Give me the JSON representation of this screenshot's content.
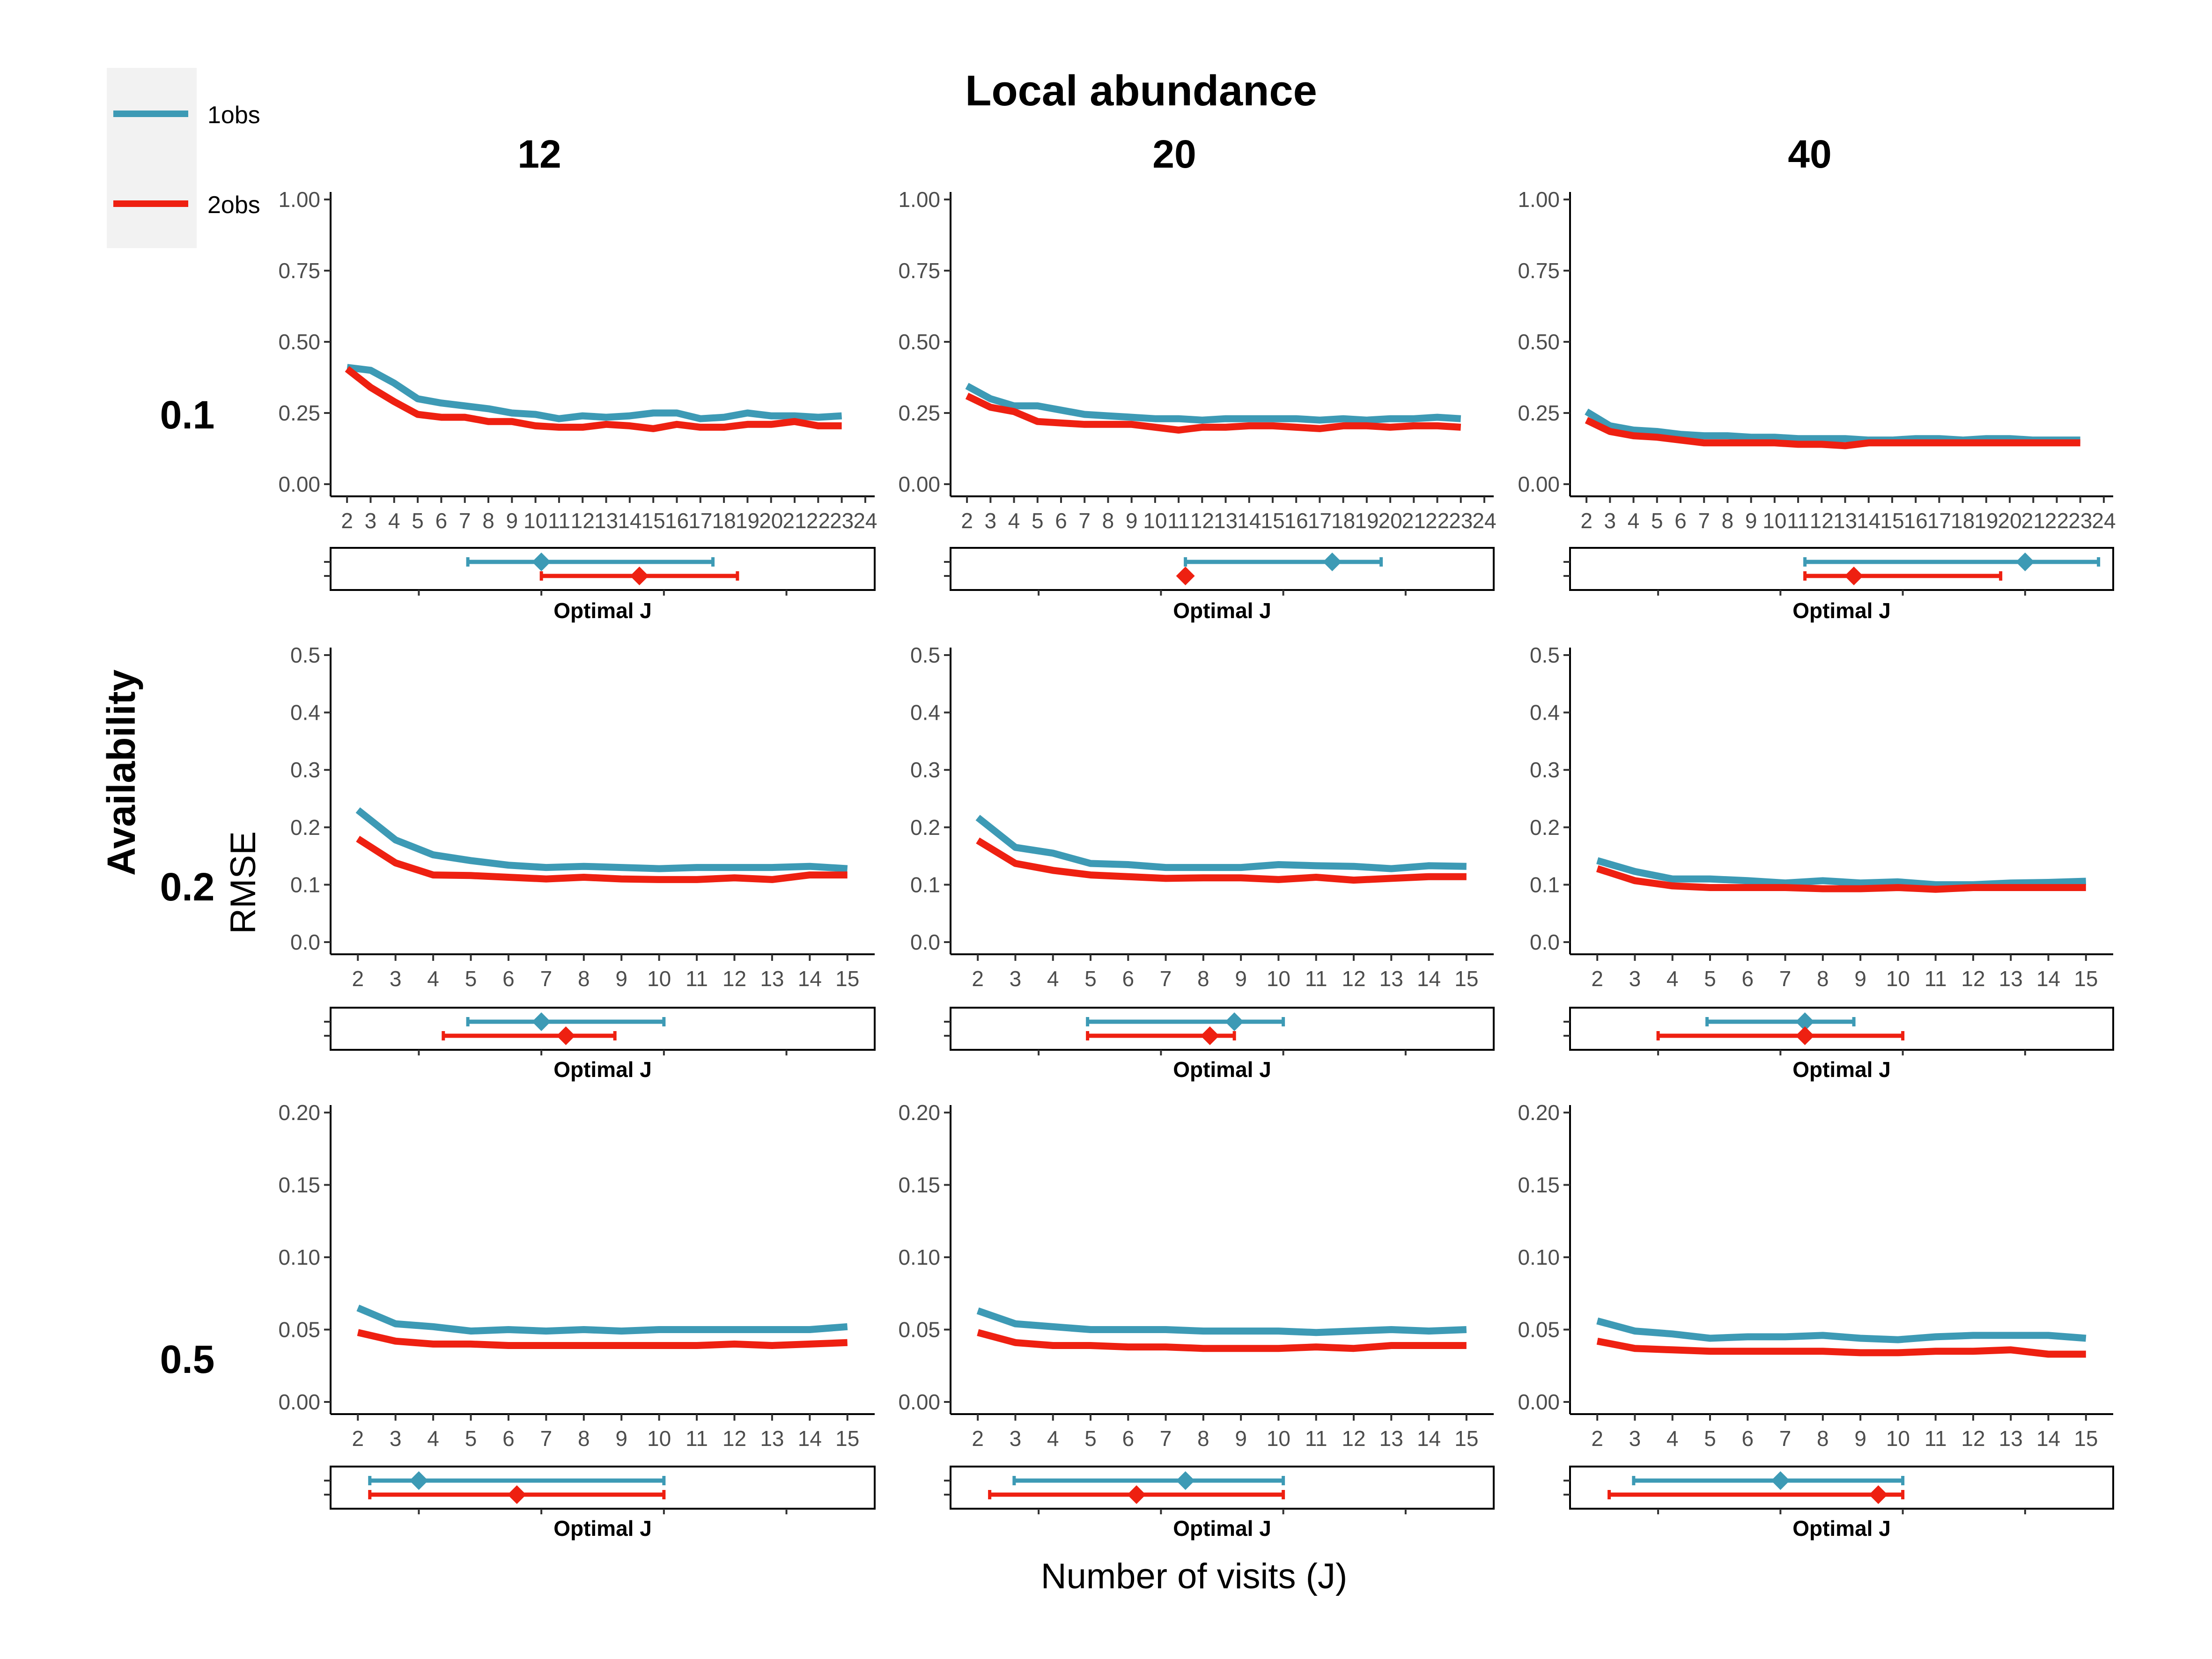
{
  "title": "Local abundance",
  "row_group_title": "Availability",
  "y_axis_title": "RMSE",
  "x_axis_title": "Number of visits (J)",
  "opt_label": "Optimal J",
  "col_labels": [
    "12",
    "20",
    "40"
  ],
  "row_labels": [
    "0.1",
    "0.2",
    "0.5"
  ],
  "legend": [
    {
      "name": "1obs",
      "color": "#3d9ab5"
    },
    {
      "name": "2obs",
      "color": "#ee2011"
    }
  ],
  "chart_data": {
    "type": "line",
    "columns": [
      "12",
      "20",
      "40"
    ],
    "rows": [
      {
        "label": "0.1",
        "ylim": [
          0,
          1.0
        ],
        "yticks": [
          0,
          0.25,
          0.5,
          0.75,
          1.0
        ],
        "yticklabels": [
          "0.00",
          "0.25",
          "0.50",
          "0.75",
          "1.00"
        ],
        "x": [
          2,
          3,
          4,
          5,
          6,
          7,
          8,
          9,
          10,
          11,
          12,
          13,
          14,
          15,
          16,
          17,
          18,
          19,
          20,
          21,
          22,
          23
        ],
        "xticks": [
          2,
          3,
          4,
          5,
          6,
          7,
          8,
          9,
          10,
          11,
          12,
          13,
          14,
          15,
          16,
          17,
          18,
          19,
          20,
          21,
          22,
          23,
          24
        ],
        "xlim": [
          1.5,
          24.2
        ],
        "panels": [
          {
            "series": [
              {
                "name": "1obs",
                "values": [
                  0.41,
                  0.4,
                  0.355,
                  0.3,
                  0.285,
                  0.275,
                  0.265,
                  0.25,
                  0.245,
                  0.23,
                  0.24,
                  0.235,
                  0.24,
                  0.25,
                  0.25,
                  0.23,
                  0.235,
                  0.25,
                  0.24,
                  0.24,
                  0.235,
                  0.24
                ]
              },
              {
                "name": "2obs",
                "values": [
                  0.405,
                  0.34,
                  0.29,
                  0.245,
                  0.235,
                  0.235,
                  0.22,
                  0.22,
                  0.205,
                  0.2,
                  0.2,
                  0.21,
                  0.205,
                  0.195,
                  0.21,
                  0.2,
                  0.2,
                  0.21,
                  0.21,
                  0.22,
                  0.205,
                  0.205
                ]
              }
            ],
            "optimal": [
              {
                "name": "1obs",
                "point": 10,
                "low": 7,
                "high": 17
              },
              {
                "name": "2obs",
                "point": 14,
                "low": 10,
                "high": 18
              }
            ]
          },
          {
            "series": [
              {
                "name": "1obs",
                "values": [
                  0.345,
                  0.3,
                  0.275,
                  0.275,
                  0.26,
                  0.245,
                  0.24,
                  0.235,
                  0.23,
                  0.23,
                  0.225,
                  0.23,
                  0.23,
                  0.23,
                  0.23,
                  0.225,
                  0.23,
                  0.225,
                  0.23,
                  0.23,
                  0.235,
                  0.23
                ]
              },
              {
                "name": "2obs",
                "values": [
                  0.31,
                  0.27,
                  0.255,
                  0.22,
                  0.215,
                  0.21,
                  0.21,
                  0.21,
                  0.2,
                  0.19,
                  0.2,
                  0.2,
                  0.205,
                  0.205,
                  0.2,
                  0.195,
                  0.205,
                  0.205,
                  0.2,
                  0.205,
                  0.205,
                  0.2
                ]
              }
            ],
            "optimal": [
              {
                "name": "1obs",
                "point": 17,
                "low": 11,
                "high": 19
              },
              {
                "name": "2obs",
                "point": 11,
                "low": 11,
                "high": 11
              }
            ]
          },
          {
            "series": [
              {
                "name": "1obs",
                "values": [
                  0.255,
                  0.205,
                  0.19,
                  0.185,
                  0.175,
                  0.17,
                  0.17,
                  0.165,
                  0.165,
                  0.16,
                  0.16,
                  0.16,
                  0.155,
                  0.155,
                  0.16,
                  0.16,
                  0.155,
                  0.16,
                  0.16,
                  0.155,
                  0.155,
                  0.155
                ]
              },
              {
                "name": "2obs",
                "values": [
                  0.225,
                  0.185,
                  0.17,
                  0.165,
                  0.155,
                  0.145,
                  0.145,
                  0.145,
                  0.145,
                  0.14,
                  0.14,
                  0.135,
                  0.145,
                  0.145,
                  0.145,
                  0.145,
                  0.145,
                  0.145,
                  0.145,
                  0.145,
                  0.145,
                  0.145
                ]
              }
            ],
            "optimal": [
              {
                "name": "1obs",
                "point": 20,
                "low": 11,
                "high": 23
              },
              {
                "name": "2obs",
                "point": 13,
                "low": 11,
                "high": 19
              }
            ]
          }
        ]
      },
      {
        "label": "0.2",
        "ylim": [
          0,
          0.5
        ],
        "yticks": [
          0,
          0.1,
          0.2,
          0.3,
          0.4,
          0.5
        ],
        "yticklabels": [
          "0.0",
          "0.1",
          "0.2",
          "0.3",
          "0.4",
          "0.5"
        ],
        "x": [
          2,
          3,
          4,
          5,
          6,
          7,
          8,
          9,
          10,
          11,
          12,
          13,
          14,
          15
        ],
        "xticks": [
          2,
          3,
          4,
          5,
          6,
          7,
          8,
          9,
          10,
          11,
          12,
          13,
          14,
          15
        ],
        "xlim": [
          1.4,
          15.6
        ],
        "panels": [
          {
            "series": [
              {
                "name": "1obs",
                "values": [
                  0.23,
                  0.178,
                  0.152,
                  0.142,
                  0.134,
                  0.13,
                  0.132,
                  0.13,
                  0.128,
                  0.13,
                  0.13,
                  0.13,
                  0.132,
                  0.128
                ]
              },
              {
                "name": "2obs",
                "values": [
                  0.18,
                  0.138,
                  0.117,
                  0.116,
                  0.113,
                  0.11,
                  0.113,
                  0.11,
                  0.109,
                  0.109,
                  0.112,
                  0.109,
                  0.117,
                  0.117
                ]
              }
            ],
            "optimal": [
              {
                "name": "1obs",
                "point": 10,
                "low": 7,
                "high": 15
              },
              {
                "name": "2obs",
                "point": 11,
                "low": 6,
                "high": 13
              }
            ]
          },
          {
            "series": [
              {
                "name": "1obs",
                "values": [
                  0.217,
                  0.165,
                  0.155,
                  0.137,
                  0.135,
                  0.13,
                  0.13,
                  0.13,
                  0.135,
                  0.133,
                  0.132,
                  0.128,
                  0.133,
                  0.132
                ]
              },
              {
                "name": "2obs",
                "values": [
                  0.177,
                  0.137,
                  0.125,
                  0.117,
                  0.114,
                  0.111,
                  0.112,
                  0.112,
                  0.109,
                  0.113,
                  0.108,
                  0.111,
                  0.114,
                  0.114
                ]
              }
            ],
            "optimal": [
              {
                "name": "1obs",
                "point": 13,
                "low": 7,
                "high": 15
              },
              {
                "name": "2obs",
                "point": 12,
                "low": 7,
                "high": 13
              }
            ]
          },
          {
            "series": [
              {
                "name": "1obs",
                "values": [
                  0.142,
                  0.123,
                  0.11,
                  0.11,
                  0.107,
                  0.103,
                  0.107,
                  0.103,
                  0.105,
                  0.1,
                  0.1,
                  0.103,
                  0.104,
                  0.106
                ]
              },
              {
                "name": "2obs",
                "values": [
                  0.128,
                  0.107,
                  0.098,
                  0.095,
                  0.095,
                  0.095,
                  0.093,
                  0.093,
                  0.095,
                  0.092,
                  0.095,
                  0.095,
                  0.095,
                  0.095
                ]
              }
            ],
            "optimal": [
              {
                "name": "1obs",
                "point": 11,
                "low": 7,
                "high": 13
              },
              {
                "name": "2obs",
                "point": 11,
                "low": 5,
                "high": 15
              }
            ]
          }
        ]
      },
      {
        "label": "0.5",
        "ylim": [
          0,
          0.2
        ],
        "yticks": [
          0,
          0.05,
          0.1,
          0.15,
          0.2
        ],
        "yticklabels": [
          "0.00",
          "0.05",
          "0.10",
          "0.15",
          "0.20"
        ],
        "x": [
          2,
          3,
          4,
          5,
          6,
          7,
          8,
          9,
          10,
          11,
          12,
          13,
          14,
          15
        ],
        "xticks": [
          2,
          3,
          4,
          5,
          6,
          7,
          8,
          9,
          10,
          11,
          12,
          13,
          14,
          15
        ],
        "xlim": [
          1.4,
          15.6
        ],
        "panels": [
          {
            "series": [
              {
                "name": "1obs",
                "values": [
                  0.065,
                  0.054,
                  0.052,
                  0.049,
                  0.05,
                  0.049,
                  0.05,
                  0.049,
                  0.05,
                  0.05,
                  0.05,
                  0.05,
                  0.05,
                  0.052
                ]
              },
              {
                "name": "2obs",
                "values": [
                  0.048,
                  0.042,
                  0.04,
                  0.04,
                  0.039,
                  0.039,
                  0.039,
                  0.039,
                  0.039,
                  0.039,
                  0.04,
                  0.039,
                  0.04,
                  0.041
                ]
              }
            ],
            "optimal": [
              {
                "name": "1obs",
                "point": 5,
                "low": 3,
                "high": 15
              },
              {
                "name": "2obs",
                "point": 9,
                "low": 3,
                "high": 15
              }
            ]
          },
          {
            "series": [
              {
                "name": "1obs",
                "values": [
                  0.063,
                  0.054,
                  0.052,
                  0.05,
                  0.05,
                  0.05,
                  0.049,
                  0.049,
                  0.049,
                  0.048,
                  0.049,
                  0.05,
                  0.049,
                  0.05
                ]
              },
              {
                "name": "2obs",
                "values": [
                  0.048,
                  0.041,
                  0.039,
                  0.039,
                  0.038,
                  0.038,
                  0.037,
                  0.037,
                  0.037,
                  0.038,
                  0.037,
                  0.039,
                  0.039,
                  0.039
                ]
              }
            ],
            "optimal": [
              {
                "name": "1obs",
                "point": 11,
                "low": 4,
                "high": 15
              },
              {
                "name": "2obs",
                "point": 9,
                "low": 3,
                "high": 15
              }
            ]
          },
          {
            "series": [
              {
                "name": "1obs",
                "values": [
                  0.056,
                  0.049,
                  0.047,
                  0.044,
                  0.045,
                  0.045,
                  0.046,
                  0.044,
                  0.043,
                  0.045,
                  0.046,
                  0.046,
                  0.046,
                  0.044
                ]
              },
              {
                "name": "2obs",
                "values": [
                  0.042,
                  0.037,
                  0.036,
                  0.035,
                  0.035,
                  0.035,
                  0.035,
                  0.034,
                  0.034,
                  0.035,
                  0.035,
                  0.036,
                  0.033,
                  0.033
                ]
              }
            ],
            "optimal": [
              {
                "name": "1obs",
                "point": 10,
                "low": 4,
                "high": 15
              },
              {
                "name": "2obs",
                "point": 14,
                "low": 3,
                "high": 15
              }
            ]
          }
        ]
      }
    ]
  }
}
